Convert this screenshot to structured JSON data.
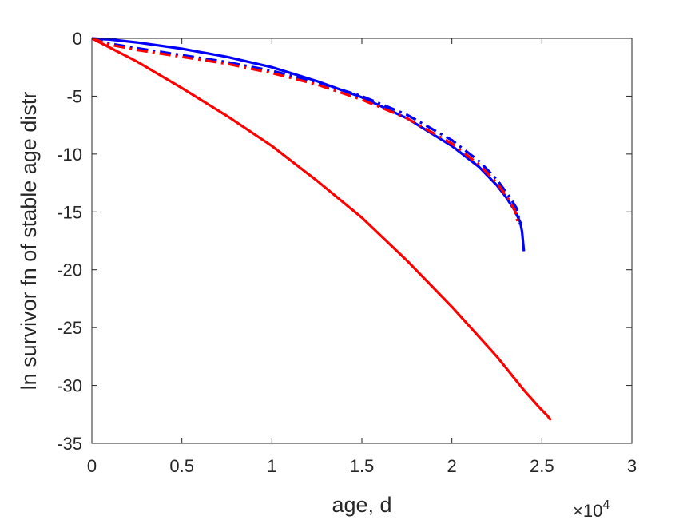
{
  "chart_data": {
    "type": "line",
    "title": "",
    "xlabel": "age, d",
    "ylabel": "ln survivor fn of stable age distr",
    "x_multiplier_label": {
      "base": "×10",
      "exp": "4"
    },
    "x_multiplier": 10000,
    "xlim": [
      0,
      3
    ],
    "ylim": [
      -35,
      0
    ],
    "x_ticks": [
      0,
      0.5,
      1,
      1.5,
      2,
      2.5,
      3
    ],
    "x_tick_labels": [
      "0",
      "0.5",
      "1",
      "1.5",
      "2",
      "2.5",
      "3"
    ],
    "y_ticks": [
      0,
      -5,
      -10,
      -15,
      -20,
      -25,
      -30,
      -35
    ],
    "y_tick_labels": [
      "0",
      "-5",
      "-10",
      "-15",
      "-20",
      "-25",
      "-30",
      "-35"
    ],
    "grid": false,
    "box": true,
    "series": [
      {
        "color": "#0000ff",
        "style": "solid",
        "x": [
          0,
          0.1,
          0.25,
          0.5,
          0.75,
          1.0,
          1.25,
          1.5,
          1.75,
          2.0,
          2.15,
          2.25,
          2.3,
          2.35,
          2.38,
          2.39,
          2.4
        ],
        "y": [
          0,
          -0.1,
          -0.35,
          -0.9,
          -1.6,
          -2.5,
          -3.7,
          -5.1,
          -6.9,
          -9.3,
          -11.1,
          -12.7,
          -13.7,
          -14.9,
          -15.9,
          -16.7,
          -18.4
        ]
      },
      {
        "color": "#ff0000",
        "style": "solid",
        "x": [
          0,
          0.1,
          0.25,
          0.5,
          0.75,
          1.0,
          1.25,
          1.5,
          1.75,
          2.0,
          2.25,
          2.4,
          2.48,
          2.53,
          2.55
        ],
        "y": [
          0,
          -0.8,
          -2.0,
          -4.3,
          -6.7,
          -9.3,
          -12.3,
          -15.5,
          -19.2,
          -23.2,
          -27.5,
          -30.4,
          -31.8,
          -32.6,
          -33.0
        ]
      },
      {
        "color": "#0000ff",
        "style": "dashdot",
        "x": [
          0,
          0.1,
          0.25,
          0.5,
          0.75,
          1.0,
          1.25,
          1.5,
          1.75,
          2.0,
          2.15,
          2.25,
          2.32,
          2.36,
          2.38
        ],
        "y": [
          0,
          -0.45,
          -0.85,
          -1.45,
          -2.05,
          -2.8,
          -3.8,
          -5.0,
          -6.6,
          -8.8,
          -10.6,
          -12.2,
          -13.7,
          -14.7,
          -16.1
        ]
      },
      {
        "color": "#ff0000",
        "style": "dashdot",
        "x": [
          0,
          0.1,
          0.25,
          0.5,
          0.75,
          1.0,
          1.25,
          1.5,
          1.75,
          2.0,
          2.15,
          2.25,
          2.32,
          2.35,
          2.37
        ],
        "y": [
          0,
          -0.55,
          -1.0,
          -1.6,
          -2.2,
          -3.0,
          -4.0,
          -5.3,
          -6.9,
          -9.1,
          -10.9,
          -12.5,
          -14.0,
          -14.9,
          -16.1
        ]
      }
    ]
  }
}
